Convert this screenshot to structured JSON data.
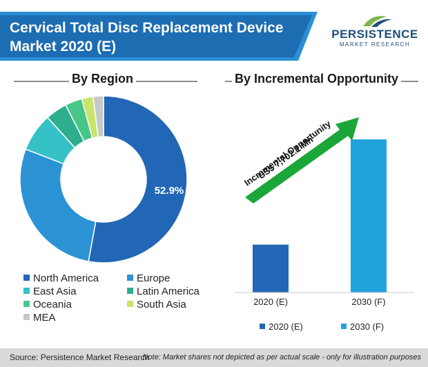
{
  "header": {
    "title_line1": "Cervical Total Disc Replacement Device",
    "title_line2": "Market 2020 (E)"
  },
  "logo": {
    "name": "PERSISTENCE",
    "subtitle": "MARKET RESEARCH"
  },
  "colors": {
    "title_bar": "#1c6db2",
    "accent_stripe": "#2a8fd6",
    "arrow": "#1aa638"
  },
  "chart_data": [
    {
      "type": "pie",
      "variant": "donut",
      "title": "By Region",
      "labels": [
        "North America",
        "Europe",
        "East Asia",
        "Latin America",
        "Oceania",
        "South Asia",
        "MEA"
      ],
      "values": [
        52.9,
        28.0,
        7.4,
        4.2,
        3.3,
        2.2,
        2.0
      ],
      "colors": [
        "#2267b5",
        "#2b93d4",
        "#36c1c7",
        "#2fae8e",
        "#48c68a",
        "#c9e36d",
        "#c8c8c8"
      ],
      "data_label": "52.9%",
      "legend_position": "bottom"
    },
    {
      "type": "bar",
      "title": "By Incremental Opportunity",
      "categories": [
        "2020 (E)",
        "2030 (F)"
      ],
      "values": [
        1.0,
        3.2
      ],
      "colors": [
        "#2267b5",
        "#21a3dc"
      ],
      "annotation_line1": "US$ 7,702.1 Mn",
      "annotation_line2": "Incremental Opportunity",
      "legend": [
        "2020 (E)",
        "2030 (F)"
      ],
      "legend_position": "bottom"
    }
  ],
  "footer": {
    "source": "Source: Persistence Market Research",
    "note": "Note: Market shares not depicted as per actual scale - only for illustration purposes"
  }
}
